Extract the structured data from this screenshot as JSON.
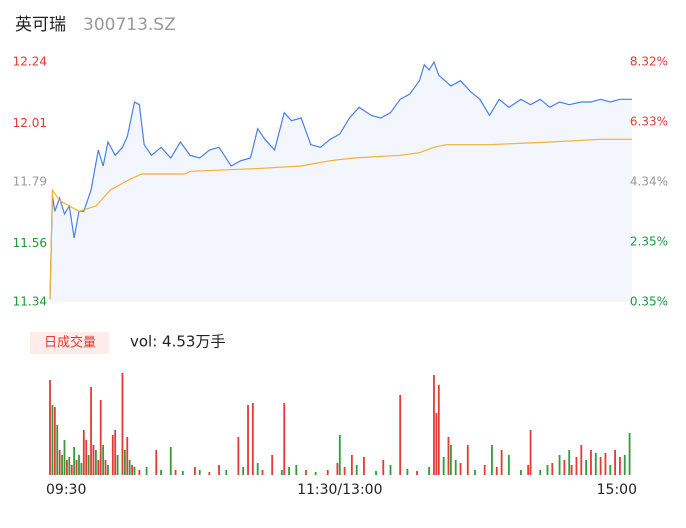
{
  "header": {
    "name": "英可瑞",
    "code": "300713.SZ"
  },
  "chart_data": [
    {
      "type": "line",
      "xlim": [
        0,
        241
      ],
      "ylim": [
        11.34,
        12.24
      ],
      "yticks": [
        11.34,
        11.56,
        11.79,
        12.01,
        12.24
      ],
      "ytick_colors": [
        "#1a9a3a",
        "#1a9a3a",
        "#999999",
        "#e53935",
        "#e53935"
      ],
      "y2lim": [
        0.35,
        8.32
      ],
      "y2ticks": [
        {
          "value": 0.35,
          "label": "0.35%"
        },
        {
          "value": 2.35,
          "label": "2.35%"
        },
        {
          "value": 4.34,
          "label": "4.34%"
        },
        {
          "value": 6.33,
          "label": "6.33%"
        },
        {
          "value": 8.32,
          "label": "8.32%"
        }
      ],
      "y2tick_colors": [
        "#1a9a3a",
        "#1a9a3a",
        "#999999",
        "#e53935",
        "#e53935"
      ],
      "area_color": "#f3f6fd",
      "series": [
        {
          "color": "#4a7fe6",
          "x": [
            0,
            1,
            2,
            4,
            6,
            8,
            10,
            12,
            14,
            17,
            20,
            22,
            24,
            27,
            30,
            32,
            35,
            37,
            39,
            42,
            46,
            50,
            54,
            58,
            62,
            66,
            70,
            75,
            79,
            83,
            86,
            89,
            93,
            97,
            100,
            104,
            108,
            112,
            116,
            120,
            124,
            128,
            133,
            137,
            141,
            145,
            149,
            153,
            155,
            157,
            159,
            161,
            166,
            170,
            174,
            178,
            182,
            186,
            190,
            195,
            199,
            203,
            207,
            211,
            215,
            220,
            224,
            228,
            232,
            236,
            241
          ],
          "values": [
            11.35,
            11.74,
            11.68,
            11.73,
            11.67,
            11.7,
            11.58,
            11.68,
            11.68,
            11.76,
            11.91,
            11.85,
            11.94,
            11.89,
            11.92,
            11.96,
            12.09,
            12.08,
            11.93,
            11.89,
            11.92,
            11.88,
            11.94,
            11.89,
            11.88,
            11.91,
            11.92,
            11.85,
            11.87,
            11.88,
            11.99,
            11.95,
            11.91,
            12.05,
            12.02,
            12.03,
            11.93,
            11.92,
            11.95,
            11.97,
            12.03,
            12.07,
            12.04,
            12.03,
            12.05,
            12.1,
            12.12,
            12.17,
            12.23,
            12.21,
            12.24,
            12.19,
            12.15,
            12.17,
            12.13,
            12.1,
            12.04,
            12.1,
            12.07,
            12.1,
            12.08,
            12.1,
            12.07,
            12.09,
            12.08,
            12.09,
            12.09,
            12.1,
            12.09,
            12.1,
            12.1
          ]
        },
        {
          "color": "#f2b233",
          "x": [
            0,
            1,
            4,
            12,
            19,
            25,
            33,
            38,
            56,
            58,
            85,
            104,
            116,
            126,
            145,
            153,
            159,
            164,
            182,
            207,
            228,
            241
          ],
          "values": [
            11.35,
            11.76,
            11.72,
            11.68,
            11.7,
            11.76,
            11.8,
            11.82,
            11.82,
            11.83,
            11.84,
            11.85,
            11.87,
            11.88,
            11.89,
            11.9,
            11.92,
            11.93,
            11.93,
            11.94,
            11.95,
            11.95
          ]
        }
      ]
    },
    {
      "type": "volume",
      "label": "日成交量",
      "summary": "vol: 4.53万手",
      "xlim": [
        0,
        241
      ],
      "ylim": [
        0,
        110
      ],
      "xticks": [
        {
          "value": 0,
          "label": "09:30"
        },
        {
          "value": 120,
          "label": "11:30/13:00"
        },
        {
          "value": 241,
          "label": "15:00"
        }
      ],
      "x": [
        0,
        1,
        2,
        3,
        4,
        5,
        6,
        7,
        8,
        9,
        10,
        11,
        12,
        13,
        14,
        15,
        16,
        17,
        18,
        19,
        20,
        21,
        22,
        23,
        24,
        26,
        27,
        28,
        30,
        31,
        32,
        33,
        34,
        35,
        37,
        40,
        44,
        46,
        50,
        52,
        55,
        60,
        62,
        66,
        70,
        73,
        78,
        80,
        82,
        84,
        86,
        88,
        92,
        96,
        97,
        99,
        102,
        106,
        110,
        115,
        119,
        120,
        122,
        125,
        127,
        130,
        135,
        138,
        141,
        145,
        148,
        152,
        157,
        159,
        160,
        161,
        163,
        165,
        166,
        168,
        170,
        173,
        176,
        180,
        183,
        185,
        187,
        190,
        195,
        198,
        199,
        203,
        206,
        208,
        211,
        213,
        215,
        216,
        218,
        220,
        222,
        224,
        226,
        228,
        230,
        232,
        234,
        236,
        238,
        240
      ],
      "values": [
        95,
        70,
        68,
        50,
        25,
        20,
        35,
        15,
        18,
        10,
        28,
        15,
        20,
        12,
        45,
        35,
        20,
        88,
        30,
        25,
        15,
        75,
        30,
        15,
        10,
        40,
        45,
        20,
        102,
        25,
        38,
        15,
        10,
        8,
        5,
        8,
        25,
        5,
        28,
        5,
        4,
        8,
        5,
        3,
        10,
        5,
        38,
        8,
        70,
        72,
        12,
        5,
        20,
        5,
        72,
        8,
        10,
        5,
        3,
        5,
        12,
        40,
        8,
        20,
        10,
        18,
        4,
        15,
        10,
        80,
        6,
        4,
        8,
        100,
        62,
        90,
        18,
        38,
        30,
        15,
        12,
        30,
        5,
        10,
        30,
        8,
        25,
        20,
        5,
        10,
        45,
        5,
        10,
        12,
        20,
        15,
        25,
        10,
        18,
        30,
        15,
        25,
        22,
        18,
        22,
        10,
        25,
        18,
        20,
        42
      ],
      "colors": [
        "#e53935",
        "#2e9d3a",
        "#e53935",
        "#2e9d3a",
        "#e53935",
        "#2e9d3a",
        "#2e9d3a",
        "#e53935",
        "#2e9d3a",
        "#e53935",
        "#2e9d3a",
        "#e53935",
        "#2e9d3a",
        "#2e9d3a",
        "#e53935",
        "#e53935",
        "#2e9d3a",
        "#e53935",
        "#e53935",
        "#2e9d3a",
        "#e53935",
        "#e53935",
        "#2e9d3a",
        "#e53935",
        "#2e9d3a",
        "#e53935",
        "#e53935",
        "#2e9d3a",
        "#e53935",
        "#2e9d3a",
        "#e53935",
        "#2e9d3a",
        "#e53935",
        "#2e9d3a",
        "#e53935",
        "#2e9d3a",
        "#e53935",
        "#2e9d3a",
        "#2e9d3a",
        "#e53935",
        "#2e9d3a",
        "#e53935",
        "#2e9d3a",
        "#e53935",
        "#e53935",
        "#2e9d3a",
        "#e53935",
        "#2e9d3a",
        "#e53935",
        "#e53935",
        "#2e9d3a",
        "#e53935",
        "#e53935",
        "#2e9d3a",
        "#e53935",
        "#2e9d3a",
        "#2e9d3a",
        "#e53935",
        "#2e9d3a",
        "#e53935",
        "#e53935",
        "#2e9d3a",
        "#e53935",
        "#e53935",
        "#2e9d3a",
        "#e53935",
        "#2e9d3a",
        "#e53935",
        "#2e9d3a",
        "#e53935",
        "#2e9d3a",
        "#e53935",
        "#2e9d3a",
        "#e53935",
        "#e53935",
        "#e53935",
        "#2e9d3a",
        "#e53935",
        "#2e9d3a",
        "#2e9d3a",
        "#e53935",
        "#e53935",
        "#2e9d3a",
        "#e53935",
        "#2e9d3a",
        "#e53935",
        "#e53935",
        "#2e9d3a",
        "#2e9d3a",
        "#e53935",
        "#e53935",
        "#2e9d3a",
        "#2e9d3a",
        "#e53935",
        "#2e9d3a",
        "#e53935",
        "#2e9d3a",
        "#e53935",
        "#e53935",
        "#e53935",
        "#2e9d3a",
        "#e53935",
        "#2e9d3a",
        "#e53935",
        "#e53935",
        "#2e9d3a",
        "#e53935",
        "#e53935",
        "#2e9d3a",
        "#2e9d3a"
      ]
    }
  ]
}
